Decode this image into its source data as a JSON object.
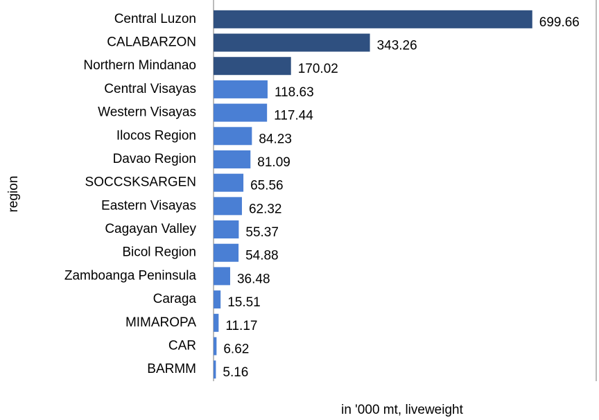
{
  "chart_data": {
    "type": "barh",
    "categories": [
      "Central Luzon",
      "CALABARZON",
      "Northern Mindanao",
      "Central Visayas",
      "Western Visayas",
      "Ilocos Region",
      "Davao Region",
      "SOCCSKSARGEN",
      "Eastern Visayas",
      "Cagayan Valley",
      "Bicol Region",
      "Zamboanga Peninsula",
      "Caraga",
      "MIMAROPA",
      "CAR",
      "BARMM"
    ],
    "values": [
      699.66,
      343.26,
      170.02,
      118.63,
      117.44,
      84.23,
      81.09,
      65.56,
      62.32,
      55.37,
      54.88,
      36.48,
      15.51,
      11.17,
      6.62,
      5.16
    ],
    "colors": [
      "#2f5080",
      "#2f5080",
      "#2f5080",
      "#4a7fd4",
      "#4a7fd4",
      "#4a7fd4",
      "#4a7fd4",
      "#4a7fd4",
      "#4a7fd4",
      "#4a7fd4",
      "#4a7fd4",
      "#4a7fd4",
      "#4a7fd4",
      "#4a7fd4",
      "#4a7fd4",
      "#4a7fd4"
    ],
    "xlim": [
      0,
      840
    ],
    "xlabel": "in '000 mt, liveweight",
    "ylabel": "region"
  }
}
